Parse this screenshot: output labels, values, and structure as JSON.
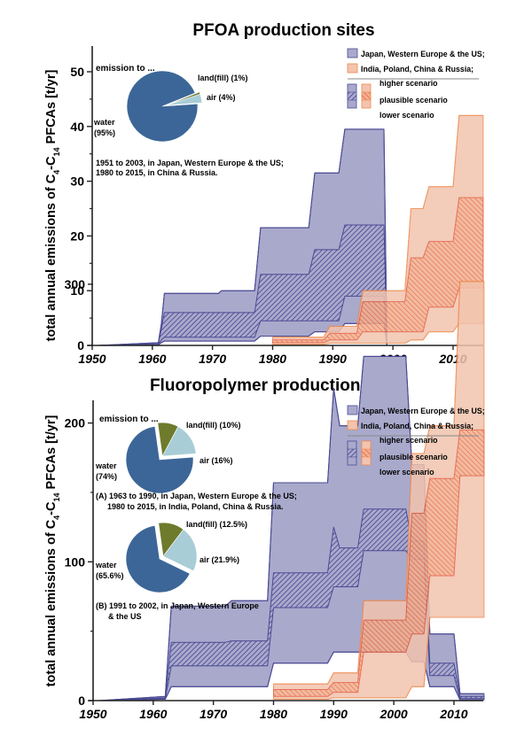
{
  "colors": {
    "purple_fill": "#a9a9cc",
    "purple_line": "#4b4a93",
    "purple_hatch": "#3f3f8f",
    "orange_fill": "#f2c4ae",
    "orange_line": "#ee8a4e",
    "orange_hatch": "#e2583a",
    "water": "#3c6698",
    "air": "#a8cdd6",
    "landfill": "#6e7a2c"
  },
  "chart_data": [
    {
      "type": "area",
      "title": "PFOA production sites",
      "xlabel": "",
      "ylabel": "total annual emissions of C4-C14 PFCAs [t/yr]",
      "xlim": [
        1950,
        2015
      ],
      "ylim": [
        0,
        55
      ],
      "xticks": [
        1950,
        1960,
        1970,
        1980,
        1990,
        2000,
        2010
      ],
      "yticks": [
        0,
        10,
        20,
        30,
        40,
        50
      ],
      "legend": {
        "placement": "top-right",
        "regions": [
          "Japan, Western Europe & the US;",
          "India, Poland, China & Russia;"
        ],
        "scenarios": [
          "higher scenario",
          "plausible scenario",
          "lower scenario"
        ]
      },
      "series": [
        {
          "name": "Japan, Western Europe & the US",
          "color_key": "purple",
          "x": [
            1951,
            1961,
            1961.5,
            1962,
            1971,
            1971.5,
            1977,
            1978,
            1986,
            1987,
            1991,
            1992,
            1998.5,
            1999
          ],
          "higher": [
            0,
            0.5,
            4,
            9.5,
            9.5,
            10,
            10,
            21.5,
            21.5,
            31.5,
            31.5,
            39.5,
            39.5,
            0
          ],
          "plaus_hi": [
            0,
            0.4,
            3,
            6,
            6,
            6,
            6,
            13,
            13,
            17.5,
            17.5,
            22,
            22,
            0
          ],
          "plaus_lo": [
            0,
            0.2,
            1,
            1.5,
            1.5,
            1.5,
            1.5,
            4.5,
            4.5,
            4.5,
            4.5,
            9,
            9,
            0
          ],
          "lower": [
            0,
            0.1,
            0.5,
            0.8,
            0.8,
            0.8,
            0.8,
            1.7,
            1.7,
            2.5,
            2.5,
            4,
            4,
            0
          ]
        },
        {
          "name": "India, Poland, China & Russia",
          "color_key": "orange",
          "x": [
            1980,
            1988.5,
            1989.5,
            1994,
            1995,
            2002,
            2003,
            2005,
            2006,
            2010,
            2011,
            2015
          ],
          "higher": [
            1.5,
            1.5,
            3.5,
            3.5,
            10,
            10,
            25,
            25,
            29,
            29,
            42,
            42
          ],
          "plaus_hi": [
            1,
            1,
            2.2,
            2.2,
            8,
            8,
            16,
            16,
            19,
            19,
            27,
            27
          ],
          "plaus_lo": [
            0.5,
            0.5,
            1,
            1,
            2.5,
            2.5,
            2.5,
            2.5,
            7,
            7,
            10.5,
            10.5
          ],
          "lower": [
            0.2,
            0.2,
            0.4,
            0.4,
            0.4,
            0.4,
            1,
            1,
            2.5,
            2.5,
            4,
            4
          ]
        }
      ],
      "pies": [
        {
          "heading": "emission to ...",
          "caption": [
            "1951 to 2003, in Japan, Western Europe & the US;",
            "1980 to 2015, in China & Russia."
          ],
          "slices": [
            {
              "label": "water",
              "pct_text": "(95%)",
              "value": 95,
              "color_key": "water"
            },
            {
              "label": "land(fill) (1%)",
              "value": 1,
              "color_key": "landfill"
            },
            {
              "label": "air (4%)",
              "value": 4,
              "color_key": "air"
            }
          ]
        }
      ]
    },
    {
      "type": "area",
      "title": "Fluoropolymer production sites",
      "xlabel": "",
      "ylabel": "total annual emissions of C4-C14 PFCAs [t/yr]",
      "xlim": [
        1950,
        2015
      ],
      "ylim": [
        0,
        375
      ],
      "xticks": [
        1950,
        1960,
        1970,
        1980,
        1990,
        2000,
        2010
      ],
      "yticks": [
        0,
        100,
        200,
        300
      ],
      "minor_yticks": [
        50,
        150,
        250,
        350
      ],
      "legend": {
        "placement": "top-right",
        "regions": [
          "Japan, Western Europe  & the US;",
          "India, Poland, China & Russia;"
        ],
        "scenarios": [
          "higher scenario",
          "plausible scenario",
          "lower scenario"
        ]
      },
      "series": [
        {
          "name": "Japan, Western Europe & the US",
          "color_key": "purple",
          "x": [
            1951,
            1962,
            1963,
            1972,
            1973,
            1979,
            1980,
            1989,
            1990,
            1991,
            1994,
            1995,
            2002,
            2003,
            2005,
            2006,
            2010,
            2011,
            2015
          ],
          "higher": [
            0,
            3,
            68,
            68,
            72,
            72,
            157,
            157,
            225,
            198,
            198,
            248,
            248,
            170,
            170,
            48,
            48,
            5,
            5
          ],
          "plaus_hi": [
            0,
            2,
            42,
            42,
            43,
            43,
            92,
            92,
            125,
            110,
            110,
            138,
            138,
            115,
            115,
            27,
            27,
            3,
            3
          ],
          "plaus_lo": [
            0,
            1.5,
            25,
            25,
            25,
            25,
            67,
            67,
            82,
            82,
            82,
            108,
            108,
            102,
            102,
            18,
            18,
            1.5,
            1.5
          ],
          "lower": [
            0,
            1,
            10,
            10,
            10,
            10,
            27,
            27,
            35,
            35,
            35,
            35,
            35,
            28,
            28,
            10,
            10,
            0.5,
            0.5
          ]
        },
        {
          "name": "India, Poland, China & Russia",
          "color_key": "orange",
          "x": [
            1980,
            1989,
            1990,
            1994,
            1995,
            2002,
            2003,
            2005,
            2006,
            2010,
            2011,
            2015
          ],
          "higher": [
            12,
            12,
            20,
            20,
            72,
            72,
            178,
            178,
            198,
            198,
            302,
            302
          ],
          "plaus_hi": [
            8,
            8,
            13,
            13,
            58,
            58,
            135,
            135,
            160,
            160,
            195,
            195
          ],
          "plaus_lo": [
            3,
            3,
            6,
            6,
            35,
            35,
            48,
            48,
            90,
            90,
            162,
            162
          ],
          "lower": [
            1,
            1,
            2,
            2,
            2,
            2,
            10,
            10,
            60,
            60,
            60,
            60
          ]
        }
      ],
      "pies": [
        {
          "heading": "emission to ...",
          "caption": [
            "(A) 1963 to 1990, in Japan, Western Europe & the US;",
            "1980 to 2015, in India, Poland, China & Russia."
          ],
          "slices": [
            {
              "label": "water",
              "pct_text": "(74%)",
              "value": 74,
              "color_key": "water"
            },
            {
              "label": "land(fill) (10%)",
              "value": 10,
              "color_key": "landfill"
            },
            {
              "label": "air (16%)",
              "value": 16,
              "color_key": "air"
            }
          ]
        },
        {
          "heading": "",
          "caption": [
            "(B) 1991 to 2002, in Japan, Western Europe",
            "& the US"
          ],
          "slices": [
            {
              "label": "water",
              "pct_text": "(65.6%)",
              "value": 65.6,
              "color_key": "water"
            },
            {
              "label": "land(fill) (12.5%)",
              "value": 12.5,
              "color_key": "landfill"
            },
            {
              "label": "air (21.9%)",
              "value": 21.9,
              "color_key": "air"
            }
          ]
        }
      ]
    }
  ]
}
